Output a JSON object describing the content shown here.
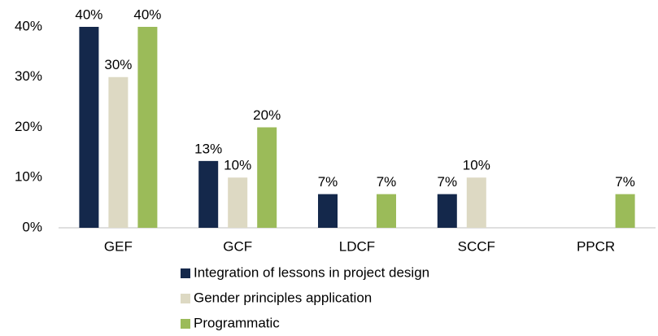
{
  "chart_data": {
    "type": "bar",
    "categories": [
      "GEF",
      "GCF",
      "LDCF",
      "SCCF",
      "PPCR"
    ],
    "series": [
      {
        "name": "Integration of lessons in project design",
        "color": "#14284b",
        "values": [
          40,
          13.3,
          6.7,
          6.7,
          null
        ],
        "value_labels": [
          "40%",
          "13%",
          "7%",
          "7%",
          null
        ]
      },
      {
        "name": "Gender principles application",
        "color": "#ddd9c3",
        "values": [
          30,
          10,
          null,
          10,
          null
        ],
        "value_labels": [
          "30%",
          "10%",
          null,
          "10%",
          null
        ]
      },
      {
        "name": "Programmatic",
        "color": "#9bbb59",
        "values": [
          40,
          20,
          6.7,
          null,
          6.7
        ],
        "value_labels": [
          "40%",
          "20%",
          "7%",
          null,
          "7%"
        ]
      }
    ],
    "ylim": [
      0,
      40
    ],
    "yticks": [
      {
        "value": 0,
        "label": "0%"
      },
      {
        "value": 10,
        "label": "10%"
      },
      {
        "value": 20,
        "label": "20%"
      },
      {
        "value": 30,
        "label": "30%"
      },
      {
        "value": 40,
        "label": "40%"
      }
    ],
    "grid": false,
    "legend": "bottom"
  }
}
